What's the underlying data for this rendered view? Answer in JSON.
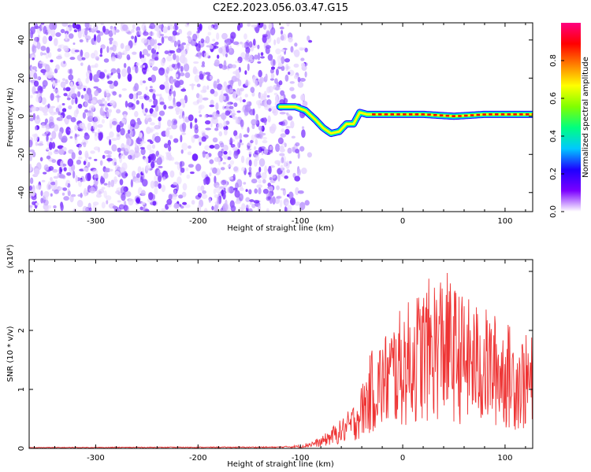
{
  "title": "C2E2.2023.056.03.47.G15",
  "chart_data": [
    {
      "type": "heatmap",
      "xlabel": "Height of straight line (km)",
      "ylabel": "Frequency (Hz)",
      "xlim": [
        -365,
        127
      ],
      "ylim": [
        -50,
        49
      ],
      "x_ticks": [
        -300,
        -200,
        -100,
        0,
        100
      ],
      "y_ticks": [
        -40,
        -20,
        0,
        20,
        40
      ],
      "colorbar": {
        "label": "Normalized spectral amplitude",
        "range": [
          0,
          1
        ],
        "ticks": [
          "0.0",
          "0.2",
          "0.4",
          "0.6",
          "0.8"
        ],
        "colors": [
          "#ffffff",
          "#7b00ff",
          "#1e00ff",
          "#00c8ff",
          "#00ff80",
          "#80ff00",
          "#ffff00",
          "#ff8000",
          "#ff0000",
          "#ff0080"
        ]
      },
      "ridge": {
        "x": [
          -120,
          -105,
          -95,
          -85,
          -78,
          -70,
          -62,
          -55,
          -48,
          -42,
          -35,
          -20,
          0,
          20,
          50,
          80,
          127
        ],
        "y": [
          5,
          5,
          3,
          -2,
          -6,
          -9,
          -8,
          -4,
          -4,
          2,
          1,
          1,
          1,
          1,
          0,
          1,
          1
        ]
      },
      "noise_region_x": [
        -365,
        -105
      ]
    },
    {
      "type": "line",
      "xlabel": "Height of straight line (km)",
      "ylabel": "SNR (10 * v/v)",
      "y_multiplier": "(x10⁴)",
      "xlim": [
        -365,
        127
      ],
      "ylim": [
        0,
        3.2
      ],
      "x_ticks": [
        -300,
        -200,
        -100,
        0,
        100
      ],
      "y_ticks": [
        0,
        1,
        2,
        3
      ],
      "color": "#ee3333",
      "envelope": {
        "x": [
          -365,
          -120,
          -100,
          -90,
          -80,
          -70,
          -60,
          -50,
          -40,
          -30,
          -20,
          -10,
          0,
          10,
          20,
          30,
          40,
          50,
          60,
          70,
          80,
          90,
          100,
          110,
          127
        ],
        "y": [
          0.02,
          0.03,
          0.06,
          0.12,
          0.18,
          0.35,
          0.5,
          0.7,
          1.1,
          1.7,
          1.9,
          2.2,
          2.4,
          2.6,
          2.8,
          2.95,
          3.1,
          2.8,
          2.6,
          2.5,
          2.4,
          2.3,
          2.2,
          2.0,
          1.9
        ]
      }
    }
  ]
}
